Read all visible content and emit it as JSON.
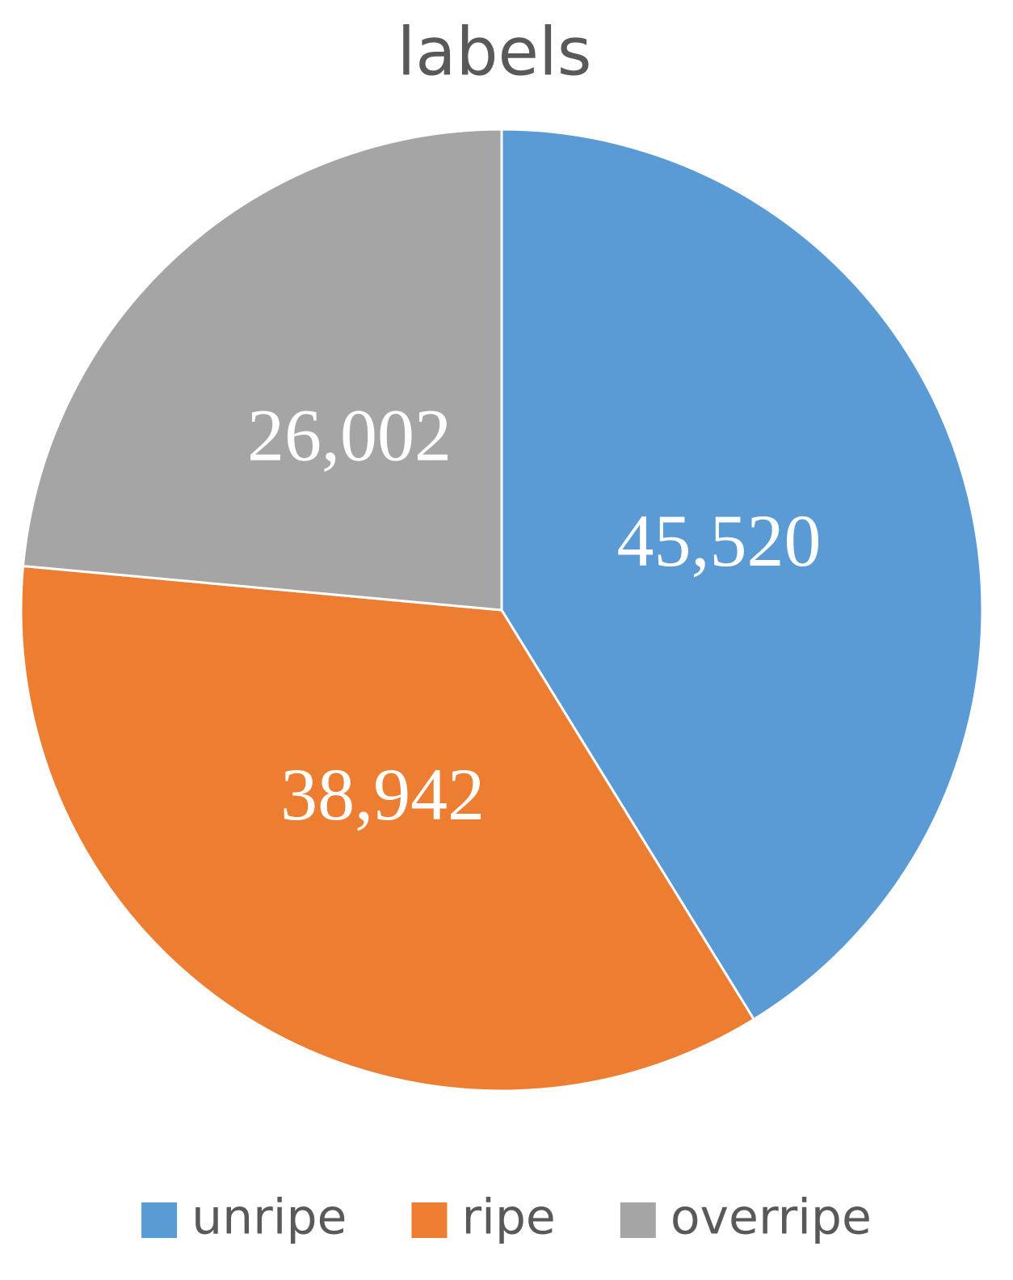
{
  "chart_data": {
    "type": "pie",
    "title": "labels",
    "categories": [
      "unripe",
      "ripe",
      "overripe"
    ],
    "values": [
      45520,
      38942,
      26002
    ],
    "value_labels": [
      "45,520",
      "38,942",
      "26,002"
    ],
    "colors": [
      "#5b9bd5",
      "#ed7d31",
      "#a5a5a5"
    ],
    "legend": "bottom"
  }
}
